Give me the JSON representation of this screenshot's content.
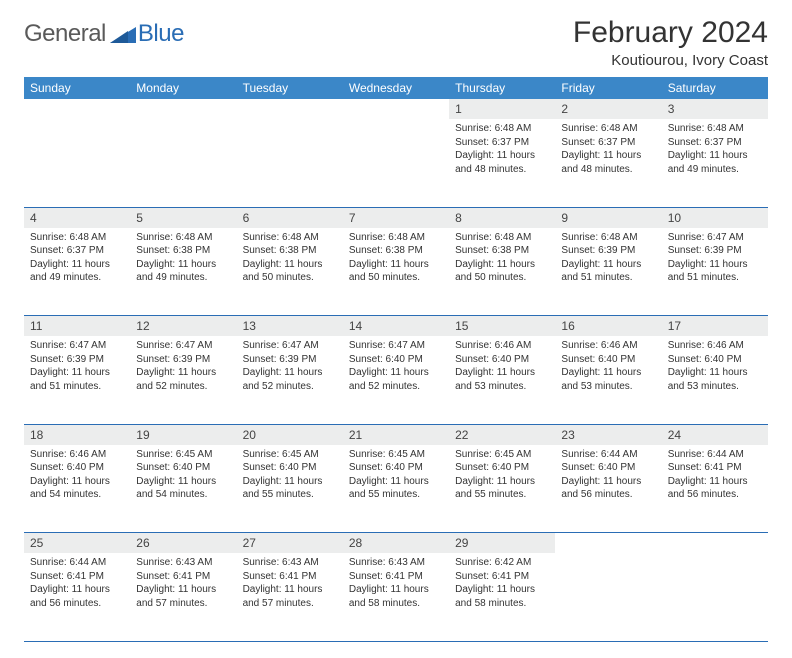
{
  "logo": {
    "general": "General",
    "blue": "Blue",
    "icon_color": "#2a6db5"
  },
  "title": "February 2024",
  "location": "Koutiourou, Ivory Coast",
  "colors": {
    "header_bg": "#3b87c8",
    "header_text": "#ffffff",
    "daynum_bg": "#eceded",
    "border": "#2a6db5",
    "body_text": "#333333"
  },
  "day_headers": [
    "Sunday",
    "Monday",
    "Tuesday",
    "Wednesday",
    "Thursday",
    "Friday",
    "Saturday"
  ],
  "weeks": [
    [
      null,
      null,
      null,
      null,
      {
        "n": "1",
        "sr": "Sunrise: 6:48 AM",
        "ss": "Sunset: 6:37 PM",
        "dl": "Daylight: 11 hours and 48 minutes."
      },
      {
        "n": "2",
        "sr": "Sunrise: 6:48 AM",
        "ss": "Sunset: 6:37 PM",
        "dl": "Daylight: 11 hours and 48 minutes."
      },
      {
        "n": "3",
        "sr": "Sunrise: 6:48 AM",
        "ss": "Sunset: 6:37 PM",
        "dl": "Daylight: 11 hours and 49 minutes."
      }
    ],
    [
      {
        "n": "4",
        "sr": "Sunrise: 6:48 AM",
        "ss": "Sunset: 6:37 PM",
        "dl": "Daylight: 11 hours and 49 minutes."
      },
      {
        "n": "5",
        "sr": "Sunrise: 6:48 AM",
        "ss": "Sunset: 6:38 PM",
        "dl": "Daylight: 11 hours and 49 minutes."
      },
      {
        "n": "6",
        "sr": "Sunrise: 6:48 AM",
        "ss": "Sunset: 6:38 PM",
        "dl": "Daylight: 11 hours and 50 minutes."
      },
      {
        "n": "7",
        "sr": "Sunrise: 6:48 AM",
        "ss": "Sunset: 6:38 PM",
        "dl": "Daylight: 11 hours and 50 minutes."
      },
      {
        "n": "8",
        "sr": "Sunrise: 6:48 AM",
        "ss": "Sunset: 6:38 PM",
        "dl": "Daylight: 11 hours and 50 minutes."
      },
      {
        "n": "9",
        "sr": "Sunrise: 6:48 AM",
        "ss": "Sunset: 6:39 PM",
        "dl": "Daylight: 11 hours and 51 minutes."
      },
      {
        "n": "10",
        "sr": "Sunrise: 6:47 AM",
        "ss": "Sunset: 6:39 PM",
        "dl": "Daylight: 11 hours and 51 minutes."
      }
    ],
    [
      {
        "n": "11",
        "sr": "Sunrise: 6:47 AM",
        "ss": "Sunset: 6:39 PM",
        "dl": "Daylight: 11 hours and 51 minutes."
      },
      {
        "n": "12",
        "sr": "Sunrise: 6:47 AM",
        "ss": "Sunset: 6:39 PM",
        "dl": "Daylight: 11 hours and 52 minutes."
      },
      {
        "n": "13",
        "sr": "Sunrise: 6:47 AM",
        "ss": "Sunset: 6:39 PM",
        "dl": "Daylight: 11 hours and 52 minutes."
      },
      {
        "n": "14",
        "sr": "Sunrise: 6:47 AM",
        "ss": "Sunset: 6:40 PM",
        "dl": "Daylight: 11 hours and 52 minutes."
      },
      {
        "n": "15",
        "sr": "Sunrise: 6:46 AM",
        "ss": "Sunset: 6:40 PM",
        "dl": "Daylight: 11 hours and 53 minutes."
      },
      {
        "n": "16",
        "sr": "Sunrise: 6:46 AM",
        "ss": "Sunset: 6:40 PM",
        "dl": "Daylight: 11 hours and 53 minutes."
      },
      {
        "n": "17",
        "sr": "Sunrise: 6:46 AM",
        "ss": "Sunset: 6:40 PM",
        "dl": "Daylight: 11 hours and 53 minutes."
      }
    ],
    [
      {
        "n": "18",
        "sr": "Sunrise: 6:46 AM",
        "ss": "Sunset: 6:40 PM",
        "dl": "Daylight: 11 hours and 54 minutes."
      },
      {
        "n": "19",
        "sr": "Sunrise: 6:45 AM",
        "ss": "Sunset: 6:40 PM",
        "dl": "Daylight: 11 hours and 54 minutes."
      },
      {
        "n": "20",
        "sr": "Sunrise: 6:45 AM",
        "ss": "Sunset: 6:40 PM",
        "dl": "Daylight: 11 hours and 55 minutes."
      },
      {
        "n": "21",
        "sr": "Sunrise: 6:45 AM",
        "ss": "Sunset: 6:40 PM",
        "dl": "Daylight: 11 hours and 55 minutes."
      },
      {
        "n": "22",
        "sr": "Sunrise: 6:45 AM",
        "ss": "Sunset: 6:40 PM",
        "dl": "Daylight: 11 hours and 55 minutes."
      },
      {
        "n": "23",
        "sr": "Sunrise: 6:44 AM",
        "ss": "Sunset: 6:40 PM",
        "dl": "Daylight: 11 hours and 56 minutes."
      },
      {
        "n": "24",
        "sr": "Sunrise: 6:44 AM",
        "ss": "Sunset: 6:41 PM",
        "dl": "Daylight: 11 hours and 56 minutes."
      }
    ],
    [
      {
        "n": "25",
        "sr": "Sunrise: 6:44 AM",
        "ss": "Sunset: 6:41 PM",
        "dl": "Daylight: 11 hours and 56 minutes."
      },
      {
        "n": "26",
        "sr": "Sunrise: 6:43 AM",
        "ss": "Sunset: 6:41 PM",
        "dl": "Daylight: 11 hours and 57 minutes."
      },
      {
        "n": "27",
        "sr": "Sunrise: 6:43 AM",
        "ss": "Sunset: 6:41 PM",
        "dl": "Daylight: 11 hours and 57 minutes."
      },
      {
        "n": "28",
        "sr": "Sunrise: 6:43 AM",
        "ss": "Sunset: 6:41 PM",
        "dl": "Daylight: 11 hours and 58 minutes."
      },
      {
        "n": "29",
        "sr": "Sunrise: 6:42 AM",
        "ss": "Sunset: 6:41 PM",
        "dl": "Daylight: 11 hours and 58 minutes."
      },
      null,
      null
    ]
  ]
}
